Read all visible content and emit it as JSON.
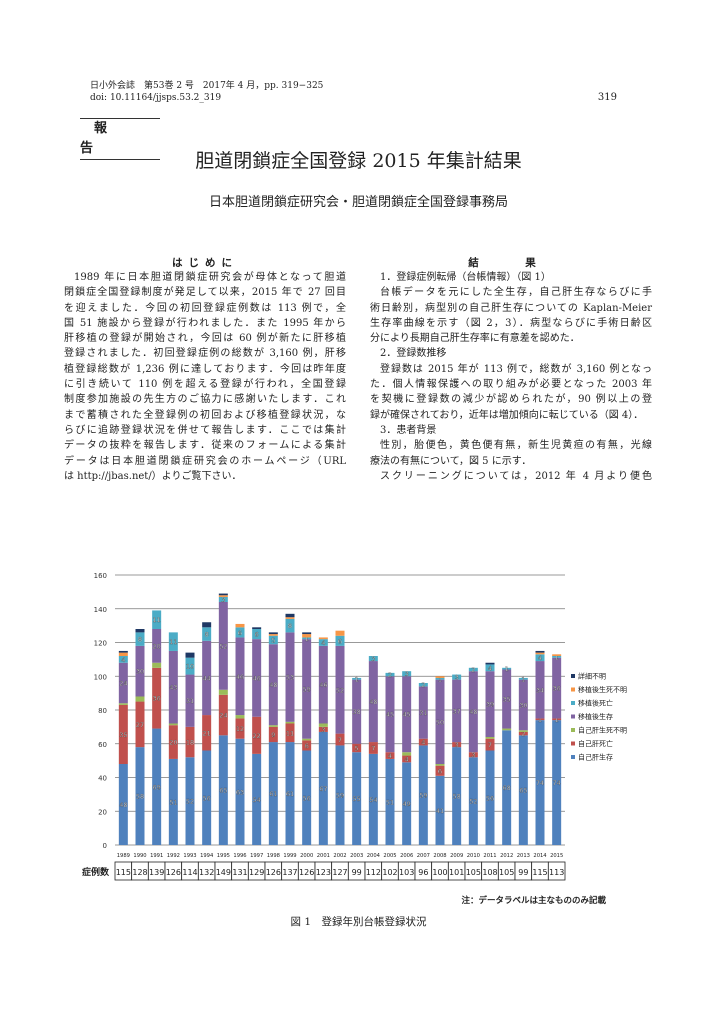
{
  "header": {
    "journal_line": "日小外会誌　第53巻 2 号　2017年 4 月，pp. 319−325",
    "doi": "doi: 10.11164/jjsps.53.2_319",
    "page_number": "319"
  },
  "article_type": "報告",
  "title": "胆道閉鎖症全国登録 2015 年集計結果",
  "authors": "日本胆道閉鎖症研究会・胆道閉鎖症全国登録事務局",
  "intro": {
    "heading": "はじめに",
    "lines": [
      "1989 年に日本胆道閉鎖症研究会が母体となって胆道",
      "閉鎖症全国登録制度が発足して以来，2015 年で 27 回目",
      "を迎えました．今回の初回登録症例数は 113 例で，全",
      "国 51 施設から登録が行われました．また 1995 年から",
      "肝移植の登録が開始され，今回は 60 例が新たに肝移植",
      "登録されました．初回登録症例の総数が 3,160 例，肝移",
      "植登録総数が 1,236 例に達しております．今回は昨年度",
      "に引き続いて 110 例を超える登録が行われ，全国登録",
      "制度参加施設の先生方のご協力に感謝いたします．これ",
      "まで蓄積された全登録例の初回および移植登録状況，な",
      "らびに追跡登録状況を併せて報告します．ここでは集計",
      "データの抜粋を報告します．従来のフォームによる集計",
      "データは日本胆道閉鎖症研究会のホームページ（URL",
      "は http://jbas.net/）よりご覧下さい．"
    ]
  },
  "results": {
    "heading": "結　果",
    "lines": [
      "1．登録症例転帰（台帳情報）（図 1）",
      "台帳データを元にした全生存，自己肝生存ならびに手",
      "術日齢別，病型別の自己肝生存についての Kaplan-Meier",
      "生存率曲線を示す（図 2，3）．病型ならびに手術日齢区",
      "分により長期自己肝生存率に有意差を認めた．",
      "2．登録数推移",
      "登録数は 2015 年が 113 例で，総数が 3,160 例となっ",
      "た．個人情報保護への取り組みが必要となった 2003 年",
      "を契機に登録数の減少が認められたが，90 例以上の登",
      "録が確保されており，近年は増加傾向に転じている（図 4）．",
      "3．患者背景",
      "性別，胎便色，黄色便有無，新生児黄疸の有無，光線",
      "療法の有無について，図 5 に示す．",
      "スクリーニングについては，2012 年 4 月より便色"
    ]
  },
  "chart_data": {
    "type": "bar",
    "stacked": true,
    "categories": [
      "1989",
      "1990",
      "1991",
      "1992",
      "1993",
      "1994",
      "1995",
      "1996",
      "1997",
      "1998",
      "1999",
      "2000",
      "2001",
      "2002",
      "2003",
      "2004",
      "2005",
      "2006",
      "2007",
      "2008",
      "2009",
      "2010",
      "2011",
      "2012",
      "2013",
      "2014",
      "2015"
    ],
    "ylim": [
      0,
      160
    ],
    "yticks": [
      0,
      20,
      40,
      60,
      80,
      100,
      120,
      140,
      160
    ],
    "grid": true,
    "legend_position": "right",
    "series": [
      {
        "name": "自己肝生存",
        "color": "#4f81bd",
        "values": [
          48,
          58,
          69,
          51,
          52,
          56,
          65,
          63,
          54,
          61,
          61,
          56,
          67,
          59,
          55,
          54,
          51,
          49,
          59,
          41,
          58,
          52,
          56,
          68,
          65,
          74,
          74
        ]
      },
      {
        "name": "自己肝死亡",
        "color": "#c0504d",
        "values": [
          35,
          27,
          36,
          20,
          18,
          21,
          24,
          12,
          22,
          9,
          11,
          6,
          3,
          7,
          5,
          7,
          4,
          4,
          4,
          6,
          3,
          3,
          7,
          0,
          2,
          1,
          1
        ]
      },
      {
        "name": "自己肝生死不明",
        "color": "#9bbb59",
        "values": [
          1,
          3,
          3,
          1,
          0,
          0,
          3,
          2,
          0,
          1,
          1,
          1,
          2,
          0,
          0,
          0,
          0,
          2,
          0,
          1,
          0,
          0,
          1,
          1,
          1,
          0,
          0
        ]
      },
      {
        "name": "移植後生存",
        "color": "#8064a2",
        "values": [
          24,
          30,
          20,
          43,
          31,
          44,
          52,
          46,
          46,
          48,
          53,
          59,
          46,
          52,
          38,
          48,
          45,
          45,
          31,
          50,
          37,
          48,
          39,
          35,
          30,
          34,
          36
        ]
      },
      {
        "name": "移植後死亡",
        "color": "#4bacc6",
        "values": [
          4,
          8,
          11,
          11,
          10,
          8,
          3,
          6,
          6,
          5,
          8,
          1,
          4,
          6,
          1,
          3,
          2,
          3,
          2,
          1,
          3,
          2,
          4,
          1,
          1,
          4,
          1
        ]
      },
      {
        "name": "移植後生死不明",
        "color": "#f79646",
        "values": [
          2,
          0,
          0,
          0,
          0,
          0,
          1,
          2,
          0,
          1,
          1,
          2,
          1,
          3,
          0,
          0,
          0,
          0,
          0,
          1,
          0,
          0,
          0,
          0,
          0,
          1,
          1
        ]
      },
      {
        "name": "詳細不明",
        "color": "#1f3864",
        "values": [
          1,
          2,
          0,
          0,
          3,
          3,
          1,
          0,
          1,
          1,
          2,
          1,
          0,
          0,
          0,
          0,
          0,
          0,
          0,
          0,
          0,
          0,
          1,
          0,
          0,
          1,
          0
        ]
      }
    ],
    "case_count_label": "症例数",
    "case_counts": [
      115,
      128,
      139,
      126,
      114,
      132,
      149,
      131,
      129,
      126,
      137,
      126,
      123,
      127,
      99,
      112,
      102,
      103,
      96,
      100,
      101,
      105,
      108,
      105,
      99,
      115,
      113
    ]
  },
  "figure_note": "注：データラベルは主なもののみ記載",
  "figure_caption": "図 1　登録年別台帳登録状況"
}
